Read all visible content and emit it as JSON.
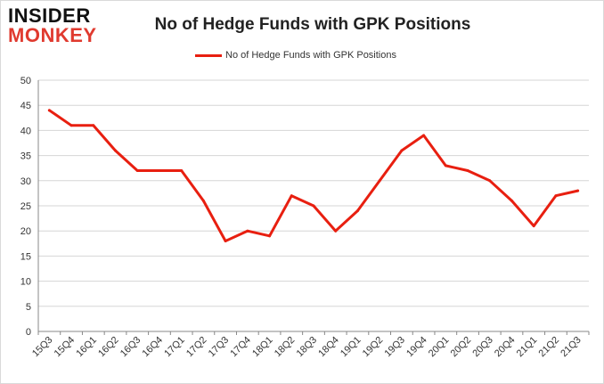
{
  "brand": {
    "logo_top": "INSIDER",
    "logo_bottom": "MONKEY",
    "accent_color": "#e03a2f"
  },
  "chart_data": {
    "type": "line",
    "title": "No of Hedge Funds with GPK Positions",
    "xlabel": "",
    "ylabel": "",
    "ylim": [
      0,
      50
    ],
    "yticks": [
      0,
      5,
      10,
      15,
      20,
      25,
      30,
      35,
      40,
      45,
      50
    ],
    "grid": true,
    "legend_position": "top-center",
    "categories": [
      "15Q3",
      "15Q4",
      "16Q1",
      "16Q2",
      "16Q3",
      "16Q4",
      "17Q1",
      "17Q2",
      "17Q3",
      "17Q4",
      "18Q1",
      "18Q2",
      "18Q3",
      "18Q4",
      "19Q1",
      "19Q2",
      "19Q3",
      "19Q4",
      "20Q1",
      "20Q2",
      "20Q3",
      "20Q4",
      "21Q1",
      "21Q2",
      "21Q3"
    ],
    "series": [
      {
        "name": "No of Hedge Funds with GPK Positions",
        "color": "#e81f10",
        "values": [
          44,
          41,
          41,
          36,
          32,
          32,
          32,
          26,
          18,
          20,
          19,
          27,
          25,
          20,
          24,
          30,
          36,
          39,
          33,
          32,
          30,
          26,
          21,
          27,
          28
        ]
      }
    ]
  }
}
